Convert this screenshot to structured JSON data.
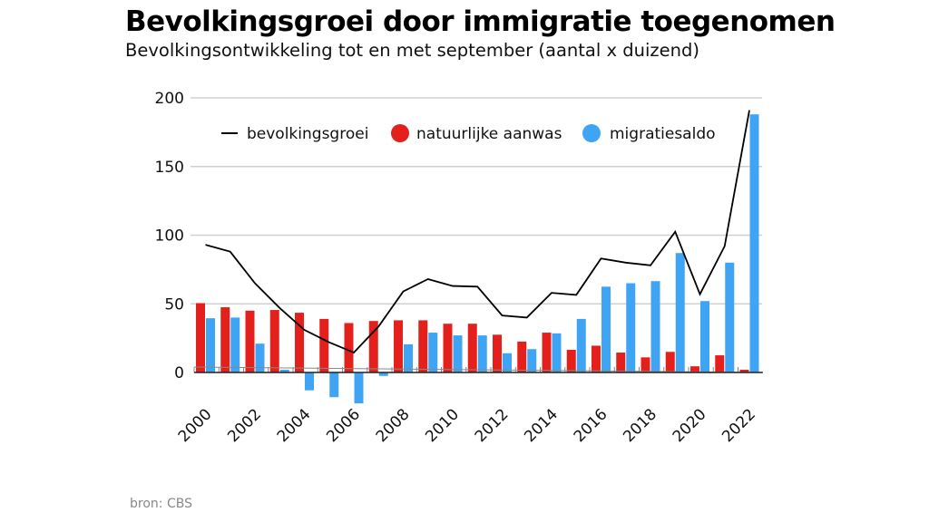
{
  "title": "Bevolkingsgroei door immigratie toegenomen",
  "subtitle": "Bevolkingsontwikkeling tot en met september (aantal x duizend)",
  "source": "bron: CBS",
  "chart_data": {
    "type": "bar",
    "title": "Bevolkingsgroei door immigratie toegenomen",
    "subtitle": "Bevolkingsontwikkeling tot en met september (aantal x duizend)",
    "categories": [
      2000,
      2001,
      2002,
      2003,
      2004,
      2005,
      2006,
      2007,
      2008,
      2009,
      2010,
      2011,
      2012,
      2013,
      2014,
      2015,
      2016,
      2017,
      2018,
      2019,
      2020,
      2021,
      2022
    ],
    "x_tick_labels": [
      "2000",
      "2002",
      "2004",
      "2006",
      "2008",
      "2010",
      "2012",
      "2014",
      "2016",
      "2018",
      "2020",
      "2022"
    ],
    "y_tick_labels": [
      "0",
      "50",
      "100",
      "150",
      "200"
    ],
    "ylim": [
      -25,
      200
    ],
    "grid": true,
    "legend_position": "top",
    "series": [
      {
        "name": "bevolkingsgroei",
        "type": "line",
        "color": "#000000",
        "values": [
          93,
          88,
          65,
          47,
          31,
          22,
          14.5,
          33.5,
          59,
          68,
          63,
          62.5,
          41.5,
          40,
          58,
          56.5,
          83,
          80,
          78,
          102.5,
          57,
          92,
          191
        ]
      },
      {
        "name": "natuurlijke aanwas",
        "type": "bar",
        "color": "#e3201b",
        "values": [
          50.5,
          47.5,
          45,
          45.5,
          43.5,
          39,
          36,
          37.5,
          38,
          38,
          35.5,
          35.5,
          27.5,
          22.5,
          29,
          16.5,
          19.5,
          14.5,
          11,
          15,
          4.5,
          12.5,
          2
        ]
      },
      {
        "name": "migratiesaldo",
        "type": "bar",
        "color": "#40a4f4",
        "values": [
          39.5,
          40,
          21,
          2,
          -13,
          -18,
          -22.5,
          -2.5,
          20.5,
          29,
          27,
          27,
          14,
          17,
          28.5,
          39,
          62.5,
          65,
          66.5,
          87,
          52,
          80,
          188
        ]
      }
    ]
  }
}
